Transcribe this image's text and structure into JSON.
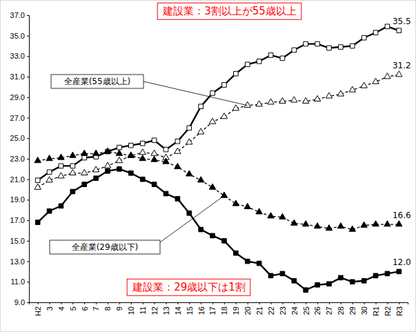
{
  "chart_data": {
    "type": "line",
    "categories": [
      "H2",
      "3",
      "4",
      "5",
      "6",
      "7",
      "8",
      "9",
      "10",
      "11",
      "12",
      "13",
      "14",
      "15",
      "16",
      "17",
      "18",
      "19",
      "20",
      "21",
      "22",
      "23",
      "24",
      "25",
      "26",
      "27",
      "28",
      "29",
      "30",
      "R1",
      "R2",
      "R3"
    ],
    "ylim": [
      9,
      37
    ],
    "yticks": [
      {
        "value": 9,
        "label": "9.0"
      },
      {
        "value": 11,
        "label": "11.0"
      },
      {
        "value": 13,
        "label": "13.0"
      },
      {
        "value": 15,
        "label": "15.0"
      },
      {
        "value": 17,
        "label": "17.0"
      },
      {
        "value": 19,
        "label": "19.0"
      },
      {
        "value": 21,
        "label": "21.0"
      },
      {
        "value": 23,
        "label": "23.0"
      },
      {
        "value": 25,
        "label": "25.0"
      },
      {
        "value": 27,
        "label": "27.0"
      },
      {
        "value": 29,
        "label": "29.0"
      },
      {
        "value": 31,
        "label": "31.0"
      },
      {
        "value": 33,
        "label": "33.0"
      },
      {
        "value": 35,
        "label": "35.0"
      },
      {
        "value": 37,
        "label": "37.0"
      }
    ],
    "grid": false,
    "annotations": [
      "建設業：3割以上が55歳以上",
      "建設業：29歳以下は1割"
    ],
    "series": [
      {
        "color": "#000000",
        "marker": "square-open",
        "line_style": "solid",
        "values": [
          20.9,
          21.7,
          22.3,
          22.3,
          23.1,
          23.2,
          23.7,
          24.1,
          24.3,
          24.5,
          24.8,
          23.9,
          24.7,
          26.0,
          28.1,
          29.4,
          30.2,
          31.3,
          32.2,
          32.5,
          33.1,
          32.8,
          33.6,
          34.2,
          34.2,
          33.8,
          33.9,
          34.0,
          34.8,
          35.3,
          35.9,
          35.5
        ],
        "value_labels": [
          null,
          null,
          null,
          null,
          null,
          null,
          null,
          null,
          null,
          null,
          null,
          null,
          null,
          null,
          null,
          null,
          null,
          null,
          null,
          null,
          null,
          null,
          null,
          null,
          null,
          null,
          null,
          null,
          null,
          null,
          null,
          "35.5"
        ]
      },
      {
        "name": "全産業(55歳以上)",
        "color": "#000000",
        "marker": "triangle-open",
        "line_style": "dashed",
        "values": [
          20.2,
          20.9,
          21.3,
          21.6,
          21.6,
          21.9,
          22.3,
          22.8,
          23.3,
          23.6,
          23.5,
          23.1,
          23.7,
          24.6,
          25.6,
          26.6,
          27.1,
          27.9,
          28.2,
          28.3,
          28.5,
          28.6,
          28.7,
          28.6,
          28.8,
          29.1,
          29.3,
          29.7,
          30.1,
          30.5,
          31.0,
          31.2
        ],
        "value_labels": [
          null,
          null,
          null,
          null,
          null,
          null,
          null,
          null,
          null,
          null,
          null,
          null,
          null,
          null,
          null,
          null,
          null,
          null,
          null,
          null,
          null,
          null,
          null,
          null,
          null,
          null,
          null,
          null,
          null,
          null,
          null,
          "31.2"
        ]
      },
      {
        "name": "全産業(29歳以下)",
        "color": "#000000",
        "marker": "triangle",
        "line_style": "dashed",
        "values": [
          22.8,
          23.0,
          23.1,
          23.3,
          23.5,
          23.5,
          23.7,
          23.5,
          23.3,
          23.0,
          22.9,
          22.7,
          22.2,
          21.5,
          20.9,
          20.2,
          19.4,
          18.6,
          18.3,
          17.8,
          17.4,
          17.3,
          16.7,
          16.6,
          16.4,
          16.2,
          16.4,
          16.1,
          16.5,
          16.6,
          16.6,
          16.6
        ],
        "value_labels": [
          null,
          null,
          null,
          null,
          null,
          null,
          null,
          null,
          null,
          null,
          null,
          null,
          null,
          null,
          null,
          null,
          null,
          null,
          null,
          null,
          null,
          null,
          null,
          null,
          null,
          null,
          null,
          null,
          null,
          null,
          null,
          "16.6"
        ]
      },
      {
        "color": "#000000",
        "marker": "square",
        "line_style": "solid",
        "values": [
          16.8,
          17.9,
          18.4,
          19.8,
          20.5,
          21.1,
          21.8,
          22.0,
          21.6,
          21.0,
          20.5,
          19.6,
          19.1,
          17.7,
          16.1,
          15.5,
          15.0,
          13.8,
          13.0,
          12.8,
          11.6,
          11.8,
          11.1,
          10.2,
          10.7,
          10.8,
          11.4,
          11.0,
          11.1,
          11.6,
          11.8,
          12.0
        ],
        "value_labels": [
          null,
          null,
          null,
          null,
          null,
          null,
          null,
          null,
          null,
          null,
          null,
          null,
          null,
          null,
          null,
          null,
          null,
          null,
          null,
          null,
          null,
          null,
          null,
          null,
          null,
          null,
          null,
          null,
          null,
          null,
          null,
          "12.0"
        ]
      }
    ]
  }
}
